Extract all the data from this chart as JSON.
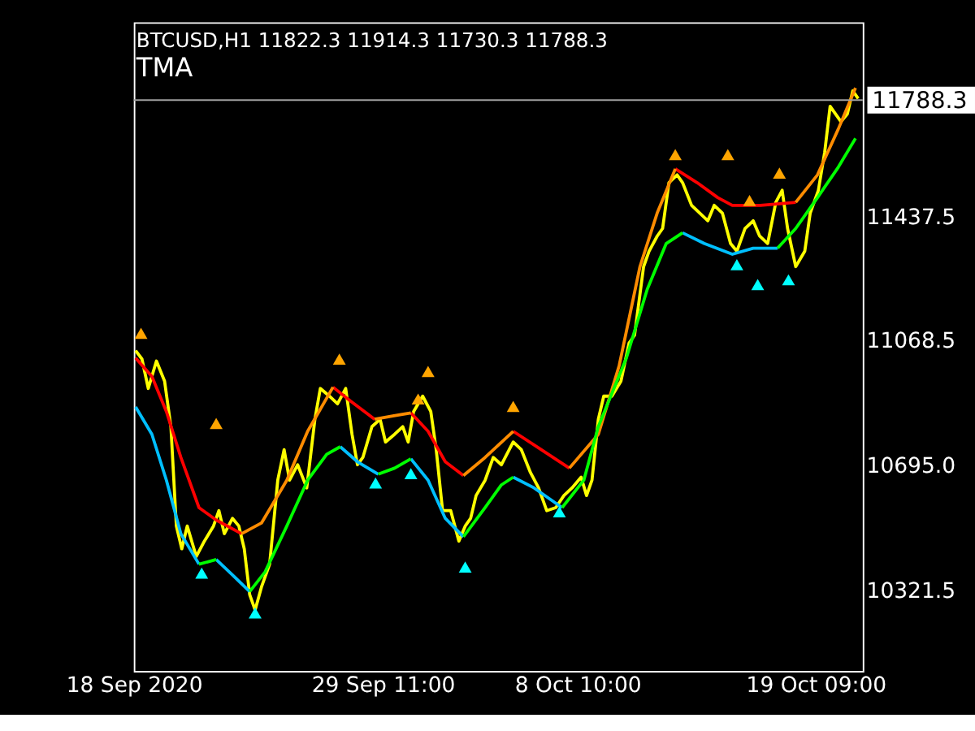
{
  "chart_data": {
    "type": "line",
    "title": "BTCUSD,H1  11822.3 11914.3 11730.3 11788.3",
    "subtitle": "TMA",
    "xlim": [
      "2020-09-18T00:00",
      "2020-10-21T13:00"
    ],
    "ylim": [
      10083,
      12021
    ],
    "xticks": [
      {
        "value": "2020-09-18T00:00",
        "label": "18 Sep 2020"
      },
      {
        "value": "2020-09-29T11:00",
        "label": "29 Sep 11:00"
      },
      {
        "value": "2020-10-08T10:00",
        "label": "8 Oct 10:00"
      },
      {
        "value": "2020-10-19T09:00",
        "label": "19 Oct 09:00"
      }
    ],
    "yticks": [
      10321.5,
      {
        "value": 10695,
        "label": "10695.0"
      },
      11068.5,
      11437.5
    ],
    "ref_lines": [
      {
        "axis": "y",
        "value": 11788.3,
        "label": "11788.3",
        "color": "#a0a0a0"
      }
    ],
    "grid": false,
    "line_style": "solid",
    "series": [
      {
        "color": "#ffff00",
        "x": [
          "2020-09-18T02:00",
          "2020-09-18T09:00",
          "2020-09-18T16:00",
          "2020-09-19T01:00",
          "2020-09-19T10:00",
          "2020-09-19T17:00",
          "2020-09-19T23:00",
          "2020-09-20T05:00",
          "2020-09-20T11:00",
          "2020-09-20T21:00",
          "2020-09-21T06:00",
          "2020-09-21T16:00",
          "2020-09-21T22:00",
          "2020-09-22T04:00",
          "2020-09-22T13:00",
          "2020-09-22T20:00",
          "2020-09-23T02:00",
          "2020-09-23T08:00",
          "2020-09-23T14:00",
          "2020-09-23T21:00",
          "2020-09-24T06:00",
          "2020-09-24T15:00",
          "2020-09-24T22:00",
          "2020-09-25T04:00",
          "2020-09-25T13:00",
          "2020-09-25T23:00",
          "2020-09-26T08:00",
          "2020-09-26T14:00",
          "2020-09-27T00:00",
          "2020-09-27T09:00",
          "2020-09-27T18:00",
          "2020-09-28T01:00",
          "2020-09-28T07:00",
          "2020-09-28T13:00",
          "2020-09-28T23:00",
          "2020-09-29T08:00",
          "2020-09-29T14:00",
          "2020-09-30T00:00",
          "2020-09-30T09:00",
          "2020-09-30T15:00",
          "2020-09-30T21:00",
          "2020-10-01T07:00",
          "2020-10-01T16:00",
          "2020-10-01T22:00",
          "2020-10-02T05:00",
          "2020-10-02T14:00",
          "2020-10-02T23:00",
          "2020-10-03T06:00",
          "2020-10-03T12:00",
          "2020-10-03T18:00",
          "2020-10-04T04:00",
          "2020-10-04T13:00",
          "2020-10-04T22:00",
          "2020-10-05T11:00",
          "2020-10-05T20:00",
          "2020-10-06T06:00",
          "2020-10-06T15:00",
          "2020-10-07T00:00",
          "2020-10-07T10:00",
          "2020-10-07T19:00",
          "2020-10-08T04:00",
          "2020-10-08T14:00",
          "2020-10-08T20:00",
          "2020-10-09T02:00",
          "2020-10-09T09:00",
          "2020-10-09T15:00",
          "2020-10-10T00:00",
          "2020-10-10T10:00",
          "2020-10-10T19:00",
          "2020-10-11T01:00",
          "2020-10-11T11:00",
          "2020-10-11T17:00",
          "2020-10-12T02:00",
          "2020-10-12T08:00",
          "2020-10-12T15:00",
          "2020-10-13T00:00",
          "2020-10-13T06:00",
          "2020-10-13T16:00",
          "2020-10-14T01:00",
          "2020-10-14T10:00",
          "2020-10-14T17:00",
          "2020-10-15T02:00",
          "2020-10-15T11:00",
          "2020-10-15T18:00",
          "2020-10-16T03:00",
          "2020-10-16T12:00",
          "2020-10-16T19:00",
          "2020-10-17T04:00",
          "2020-10-17T13:00",
          "2020-10-17T20:00",
          "2020-10-18T02:00",
          "2020-10-18T11:00",
          "2020-10-18T21:00",
          "2020-10-19T03:00",
          "2020-10-19T12:00",
          "2020-10-19T19:00",
          "2020-10-20T01:00",
          "2020-10-20T07:00",
          "2020-10-20T13:00",
          "2020-10-20T20:00",
          "2020-10-21T02:00",
          "2020-10-21T08:00"
        ],
        "values": [
          11040,
          11015,
          10927,
          11009,
          10949,
          10812,
          10516,
          10448,
          10516,
          10425,
          10471,
          10516,
          10562,
          10493,
          10539,
          10516,
          10448,
          10311,
          10265,
          10334,
          10402,
          10653,
          10744,
          10653,
          10699,
          10630,
          10835,
          10927,
          10904,
          10881,
          10927,
          10790,
          10699,
          10721,
          10813,
          10835,
          10767,
          10790,
          10813,
          10767,
          10858,
          10904,
          10858,
          10744,
          10562,
          10562,
          10471,
          10516,
          10539,
          10607,
          10653,
          10721,
          10699,
          10767,
          10744,
          10676,
          10630,
          10562,
          10571,
          10607,
          10630,
          10662,
          10607,
          10653,
          10835,
          10904,
          10904,
          10949,
          11063,
          11086,
          11291,
          11337,
          11382,
          11405,
          11542,
          11565,
          11542,
          11474,
          11451,
          11428,
          11474,
          11451,
          11360,
          11337,
          11405,
          11428,
          11383,
          11360,
          11483,
          11519,
          11405,
          11291,
          11337,
          11451,
          11519,
          11633,
          11770,
          11747,
          11724,
          11747,
          11816,
          11793
        ]
      },
      {
        "color": "#ff0000",
        "x": [
          "2020-09-18T02:00",
          "2020-09-18T20:00",
          "2020-09-19T12:00",
          "2020-09-20T04:00",
          "2020-09-21T00:00",
          "2020-09-21T19:00",
          "2020-09-22T23:00",
          null,
          "2020-09-27T04:00",
          "2020-09-27T23:00",
          "2020-09-29T02:00",
          null,
          "2020-09-30T18:00",
          "2020-10-01T13:00",
          "2020-10-02T08:00",
          "2020-10-03T04:00",
          null,
          "2020-10-05T11:00",
          "2020-10-06T18:00",
          "2020-10-08T01:00",
          null,
          "2020-10-12T22:00",
          "2020-10-13T22:00",
          "2020-10-14T21:00",
          "2020-10-15T13:00",
          "2020-10-16T20:00",
          "2020-10-18T11:00"
        ],
        "values": [
          11018,
          10963,
          10858,
          10721,
          10571,
          10534,
          10493,
          null,
          10931,
          10890,
          10835,
          null,
          10854,
          10799,
          10708,
          10667,
          null,
          10799,
          10744,
          10689,
          null,
          11583,
          11542,
          11497,
          11474,
          11474,
          11483
        ]
      },
      {
        "color": "#ff8c00",
        "x": [
          "2020-09-22T23:00",
          "2020-09-23T21:00",
          "2020-09-25T01:00",
          "2020-09-26T00:00",
          "2020-09-27T04:00",
          null,
          "2020-09-29T02:00",
          "2020-09-29T22:00",
          "2020-09-30T18:00",
          null,
          "2020-10-03T04:00",
          "2020-10-04T04:00",
          "2020-10-05T11:00",
          null,
          "2020-10-08T01:00",
          "2020-10-09T09:00",
          "2020-10-10T08:00",
          "2020-10-11T07:00",
          "2020-10-12T02:00",
          "2020-10-12T22:00",
          null,
          "2020-10-18T11:00",
          "2020-10-19T11:00",
          "2020-10-20T10:00",
          "2020-10-21T05:00"
        ],
        "values": [
          10493,
          10525,
          10653,
          10799,
          10931,
          null,
          10835,
          10845,
          10854,
          null,
          10667,
          10721,
          10799,
          null,
          10689,
          10790,
          10995,
          11291,
          11451,
          11583,
          null,
          11483,
          11565,
          11702,
          11825
        ]
      },
      {
        "color": "#00bfff",
        "x": [
          "2020-09-18T02:00",
          "2020-09-18T20:00",
          "2020-09-19T12:00",
          "2020-09-20T04:00",
          "2020-09-21T00:00",
          null,
          "2020-09-21T19:00",
          "2020-09-22T13:00",
          "2020-09-23T08:00",
          null,
          "2020-09-27T12:00",
          "2020-09-28T07:00",
          "2020-09-29T06:00",
          null,
          "2020-09-30T18:00",
          "2020-10-01T13:00",
          "2020-10-02T08:00",
          "2020-10-03T04:00",
          null,
          "2020-10-05T11:00",
          "2020-10-06T10:00",
          "2020-10-07T17:00",
          null,
          "2020-10-13T06:00",
          "2020-10-14T06:00",
          "2020-10-15T13:00",
          "2020-10-16T12:00",
          "2020-10-17T15:00"
        ],
        "values": [
          10872,
          10790,
          10653,
          10493,
          10402,
          null,
          10416,
          10370,
          10320,
          null,
          10753,
          10708,
          10671,
          null,
          10717,
          10653,
          10539,
          10484,
          null,
          10662,
          10630,
          10571,
          null,
          11392,
          11360,
          11328,
          11346,
          11346
        ]
      },
      {
        "color": "#00ff00",
        "x": [
          "2020-09-21T00:00",
          "2020-09-21T19:00",
          null,
          "2020-09-23T08:00",
          "2020-09-24T01:00",
          "2020-09-25T01:00",
          "2020-09-26T00:00",
          "2020-09-26T21:00",
          "2020-09-27T12:00",
          null,
          "2020-09-29T06:00",
          "2020-09-30T00:00",
          "2020-09-30T18:00",
          null,
          "2020-10-03T04:00",
          "2020-10-04T04:00",
          "2020-10-04T22:00",
          "2020-10-05T11:00",
          null,
          "2020-10-07T17:00",
          "2020-10-08T17:00",
          "2020-10-09T09:00",
          "2020-10-10T16:00",
          "2020-10-11T15:00",
          "2020-10-12T12:00",
          "2020-10-13T06:00",
          null,
          "2020-10-17T15:00",
          "2020-10-18T11:00",
          "2020-10-19T11:00",
          "2020-10-20T10:00",
          "2020-10-21T05:00"
        ],
        "values": [
          10402,
          10416,
          null,
          10320,
          10379,
          10516,
          10653,
          10730,
          10753,
          null,
          10671,
          10689,
          10717,
          null,
          10484,
          10571,
          10639,
          10662,
          null,
          10571,
          10653,
          10813,
          11018,
          11223,
          11360,
          11392,
          null,
          11346,
          11405,
          11497,
          11588,
          11674
        ]
      },
      {
        "type": "scatter",
        "marker": "triangle",
        "color": "#ffa500",
        "x": [
          "2020-09-18T08:00",
          "2020-09-21T19:00",
          "2020-09-27T11:00",
          "2020-10-01T02:00",
          "2020-10-01T13:00",
          "2020-10-05T11:00",
          "2020-10-12T22:00",
          "2020-10-15T08:00",
          "2020-10-16T08:00",
          "2020-10-17T17:00"
        ],
        "values": [
          11086,
          10817,
          11009,
          10890,
          10972,
          10868,
          11620,
          11620,
          11483,
          11565
        ]
      },
      {
        "type": "scatter",
        "marker": "triangle",
        "color": "#00ffff",
        "x": [
          "2020-09-21T03:00",
          "2020-09-23T14:00",
          "2020-09-29T03:00",
          "2020-09-30T18:00",
          "2020-10-03T06:00",
          "2020-10-07T14:00",
          "2020-10-15T18:00",
          "2020-10-16T17:00",
          "2020-10-18T03:00"
        ],
        "values": [
          10370,
          10251,
          10639,
          10667,
          10388,
          10553,
          11291,
          11232,
          11246
        ]
      }
    ]
  }
}
